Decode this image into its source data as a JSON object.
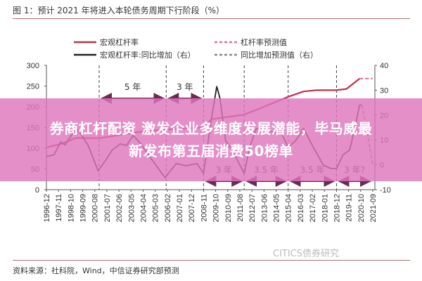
{
  "header": {
    "title": "图 1：预计 2021 年将进入本轮债务周期下行阶段（%）"
  },
  "footer": {
    "source": "资料来源：社科院，Wind，中信证券研究部预测",
    "watermark": "CITICS债券研究"
  },
  "banner": {
    "line1": "券商杠杆配资 激发企业多维度发展潜能，毕马威最",
    "line2": "新发布第五届消费50榜单"
  },
  "chart_data": {
    "type": "line",
    "title": "预计 2021 年将进入本轮债务周期下行阶段（%）",
    "left_axis": {
      "ylim": [
        0,
        300
      ],
      "ticks": [
        "0",
        "50",
        "100",
        "150",
        "200",
        "250",
        "300"
      ]
    },
    "right_axis": {
      "ylim": [
        -10,
        40
      ],
      "ticks": [
        "-10",
        "0",
        "10",
        "20",
        "30",
        "40"
      ]
    },
    "x_ticks": [
      "1996-12",
      "1997-11",
      "1998-10",
      "1999-09",
      "2000-08",
      "2001-07",
      "2002-06",
      "2003-05",
      "2004-04",
      "2005-03",
      "2006-02",
      "2007-01",
      "2007-12",
      "2008-11",
      "2009-10",
      "2010-09",
      "2011-08",
      "2012-07",
      "2013-06",
      "2014-05",
      "2015-04",
      "2016-03",
      "2017-02",
      "2018-01",
      "2018-12",
      "2019-11",
      "2020-10",
      "2021-09"
    ],
    "legend": [
      "宏观杠杆率",
      "杠杆率预测值",
      "宏观杠杆率:同比增加（右）",
      "同比增加预测值（右）"
    ],
    "colors": {
      "leverage": "#c0304a",
      "leverage_forecast": "#e07090",
      "yoy": "#222222",
      "yoy_forecast": "#888888",
      "arrow": "#6a2a55"
    },
    "series": [
      {
        "name": "宏观杠杆率",
        "axis": "left",
        "style": "solid",
        "x": [
          "1996-12",
          "1998-01",
          "1999-03",
          "2000-12",
          "2002-07",
          "2004-02",
          "2006-01",
          "2008-11",
          "2009-06",
          "2010-07",
          "2011-12",
          "2013-06",
          "2015-04",
          "2016-06",
          "2017-06",
          "2018-12",
          "2019-09",
          "2020-09"
        ],
        "values": [
          102,
          110,
          125,
          124,
          132,
          140,
          145,
          150,
          170,
          175,
          181,
          200,
          224,
          237,
          240,
          240,
          243,
          268
        ]
      },
      {
        "name": "杠杆率预测值",
        "axis": "left",
        "style": "dashed",
        "x": [
          "2020-09",
          "2021-09"
        ],
        "values": [
          268,
          268
        ]
      },
      {
        "name": "宏观杠杆率:同比增加（右）",
        "axis": "right",
        "style": "solid",
        "x": [
          "1996-12",
          "1997-07",
          "1998-01",
          "1998-05",
          "1999-01",
          "1999-03",
          "1999-07",
          "2000-02",
          "2000-11",
          "2001-06",
          "2001-12",
          "2002-07",
          "2003-01",
          "2003-07",
          "2004-02",
          "2004-11",
          "2005-12",
          "2006-10",
          "2007-07",
          "2008-05",
          "2008-11",
          "2009-06",
          "2009-11",
          "2010-02",
          "2010-07",
          "2011-01",
          "2011-12",
          "2012-05",
          "2012-11",
          "2013-12",
          "2014-10",
          "2015-04",
          "2015-11",
          "2016-06",
          "2017-03",
          "2017-12",
          "2018-07",
          "2018-12",
          "2019-06",
          "2019-12",
          "2020-05",
          "2020-09",
          "2020-11"
        ],
        "values": [
          3.3,
          4,
          9.2,
          8,
          13.4,
          14.6,
          12.6,
          7.8,
          -2.4,
          1.9,
          6,
          8.4,
          7.8,
          11.8,
          8.4,
          2.7,
          -5.2,
          0.5,
          -0.4,
          0.5,
          -3.5,
          18,
          31.5,
          26.7,
          9.8,
          6,
          -3.5,
          7,
          14.6,
          13.4,
          12.6,
          7,
          9.8,
          14.6,
          7,
          -0.1,
          -1.5,
          -1.5,
          4,
          6,
          15.4,
          24,
          24
        ]
      },
      {
        "name": "同比增加预测值（右）",
        "axis": "right",
        "style": "dashed",
        "x": [
          "2020-11",
          "2021-03",
          "2021-09"
        ],
        "values": [
          24,
          15.4,
          -0.1
        ]
      }
    ],
    "cycle_markers": [
      "2000-12",
      "2006-01",
      "2008-11",
      "2011-12",
      "2015-04",
      "2018-12"
    ],
    "annotations": [
      {
        "label": "5 年",
        "from": "2000-12",
        "to": "2006-01",
        "row": "top"
      },
      {
        "label": "3 年",
        "from": "2006-01",
        "to": "2008-11",
        "row": "top"
      },
      {
        "label": "3 年",
        "from": "2008-11",
        "to": "2011-12",
        "row": "bottom"
      },
      {
        "label": "3.5 年",
        "from": "2011-12",
        "to": "2015-04",
        "row": "bottom"
      },
      {
        "label": "3.5 年",
        "from": "2015-04",
        "to": "2018-12",
        "row": "bottom"
      },
      {
        "label": "3 年?",
        "from": "2018-12",
        "to": "2021-09",
        "row": "bottom"
      }
    ]
  }
}
